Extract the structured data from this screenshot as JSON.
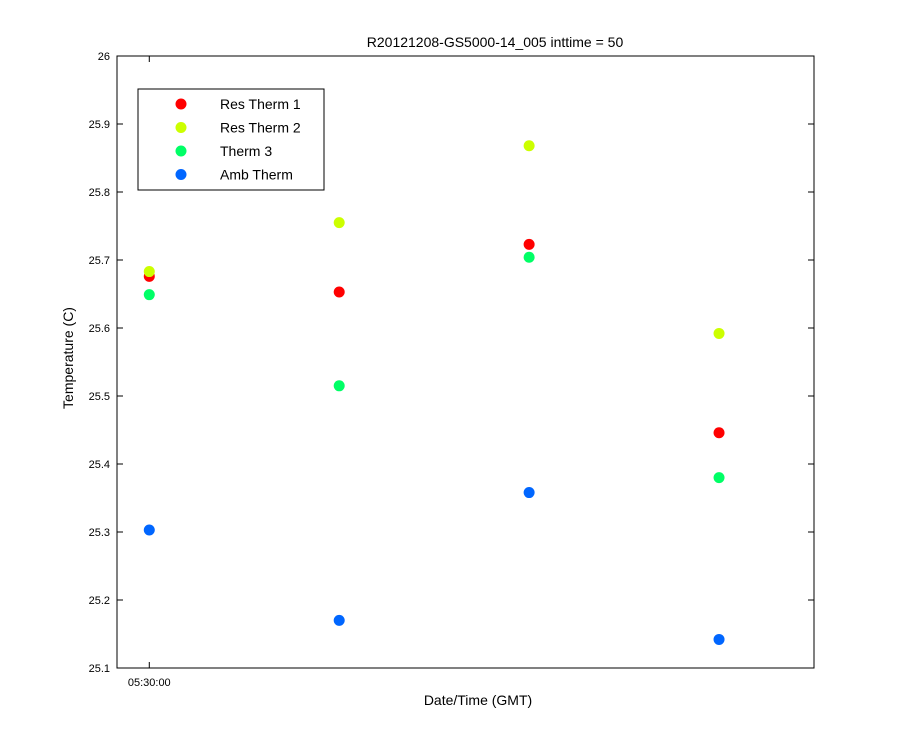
{
  "chart_data": {
    "type": "scatter",
    "title": "R20121208-GS5000-14_005 inttime = 50",
    "xlabel": "Date/Time (GMT)",
    "ylabel": "Temperature (C)",
    "ylim": [
      25.1,
      26.0
    ],
    "yticks": [
      "25.1",
      "25.2",
      "25.3",
      "25.4",
      "25.5",
      "25.6",
      "25.7",
      "25.8",
      "25.9",
      "26"
    ],
    "xticks": [
      "05:30:00"
    ],
    "x": [
      1,
      2,
      3,
      4
    ],
    "xlim": [
      0.83,
      4.5
    ],
    "grid": false,
    "legend_position": "top-left",
    "series": [
      {
        "name": "Res Therm 1",
        "color": "#ff0000",
        "values": [
          25.676,
          25.653,
          25.723,
          25.446
        ]
      },
      {
        "name": "Res Therm 2",
        "color": "#ccff00",
        "values": [
          25.683,
          25.755,
          25.868,
          25.592
        ]
      },
      {
        "name": "Therm 3",
        "color": "#00ff66",
        "values": [
          25.649,
          25.515,
          25.704,
          25.38
        ]
      },
      {
        "name": "Amb Therm",
        "color": "#0066ff",
        "values": [
          25.303,
          25.17,
          25.358,
          25.142
        ]
      }
    ]
  }
}
